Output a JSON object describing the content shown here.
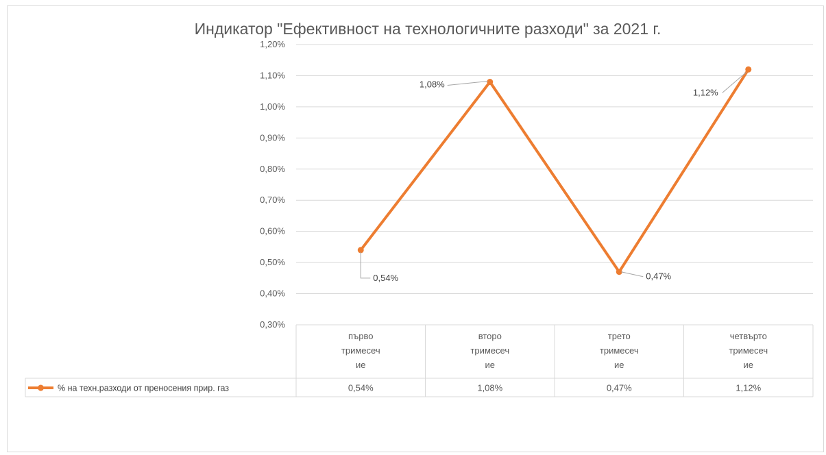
{
  "chart_data": {
    "type": "line",
    "title": "Индикатор \"Ефективност на технологичните разходи\" за 2021 г.",
    "categories": [
      [
        "първо",
        "тримесеч",
        "ие"
      ],
      [
        "второ",
        "тримесеч",
        "ие"
      ],
      [
        "трето",
        "тримесеч",
        "ие"
      ],
      [
        "четвърто",
        "тримесеч",
        "ие"
      ]
    ],
    "series": [
      {
        "name": "% на техн.разходи от преносения прир. газ",
        "values": [
          0.54,
          1.08,
          0.47,
          1.12
        ],
        "labels": [
          "0,54%",
          "1,08%",
          "0,47%",
          "1,12%"
        ],
        "color": "#ED7D31"
      }
    ],
    "yticks": [
      "0,30%",
      "0,40%",
      "0,50%",
      "0,60%",
      "0,70%",
      "0,80%",
      "0,90%",
      "1,00%",
      "1,10%",
      "1,20%"
    ],
    "ylim": [
      0.3,
      1.2
    ],
    "grid": true,
    "data_table": true,
    "gridline_color": "#d9d9d9",
    "text_color": "#595959"
  }
}
